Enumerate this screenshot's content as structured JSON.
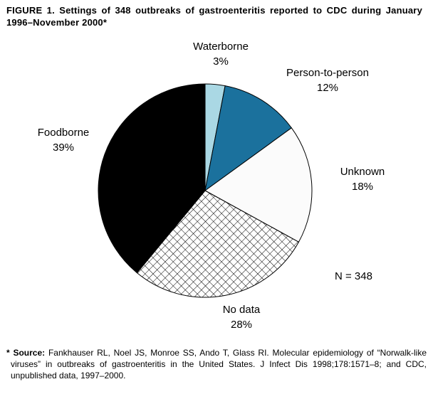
{
  "figure": {
    "title": "FIGURE 1. Settings of 348 outbreaks of gastroenteritis reported to CDC during January 1996–November 2000*",
    "n_label": "N = 348",
    "footnote_prefix": "* Source:",
    "footnote_text": "Fankhauser RL, Noel JS, Monroe SS, Ando T, Glass RI. Molecular epidemiology of “Norwalk-like viruses” in outbreaks of gastroenteritis in the United States. J Infect Dis 1998;178:1571–8; and CDC, unpublished data, 1997–2000."
  },
  "chart_data": {
    "type": "pie",
    "title": "Settings of 348 outbreaks of gastroenteritis reported to CDC during January 1996–November 2000",
    "n_total": 348,
    "annotation": "N = 348",
    "start_angle_deg": -90,
    "direction": "clockwise",
    "legend_position": "labels-outside",
    "slices": [
      {
        "id": "waterborne",
        "label": "Waterborne",
        "value_pct": 3,
        "pct_label": "3%",
        "color": "#aad8e4",
        "pattern": "solid"
      },
      {
        "id": "person-to-person",
        "label": "Person-to-person",
        "value_pct": 12,
        "pct_label": "12%",
        "color": "#1b719d",
        "pattern": "solid"
      },
      {
        "id": "unknown",
        "label": "Unknown",
        "value_pct": 18,
        "pct_label": "18%",
        "color": "#fbfbfb",
        "pattern": "solid"
      },
      {
        "id": "no-data",
        "label": "No data",
        "value_pct": 28,
        "pct_label": "28%",
        "color": "#ffffff",
        "pattern": "crosshatch"
      },
      {
        "id": "foodborne",
        "label": "Foodborne",
        "value_pct": 39,
        "pct_label": "39%",
        "color": "#000000",
        "pattern": "solid"
      }
    ]
  }
}
